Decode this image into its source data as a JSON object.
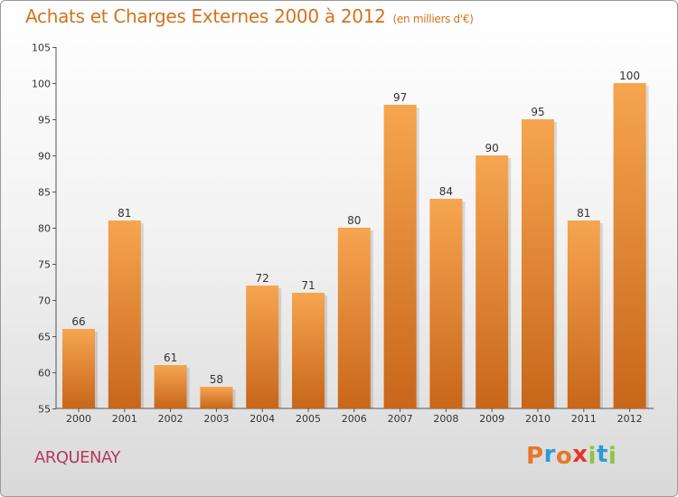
{
  "chart_data": {
    "type": "bar",
    "title": "Achats et Charges Externes 2000 à 2012",
    "subtitle": "(en milliers d'€)",
    "categories": [
      "2000",
      "2001",
      "2002",
      "2003",
      "2004",
      "2005",
      "2006",
      "2007",
      "2008",
      "2009",
      "2010",
      "2011",
      "2012"
    ],
    "values": [
      66,
      81,
      61,
      58,
      72,
      71,
      80,
      97,
      84,
      90,
      95,
      81,
      100
    ],
    "data_labels": [
      "66",
      "81",
      "61",
      "58",
      "72",
      "71",
      "80",
      "97",
      "84",
      "90",
      "95",
      "81",
      "100"
    ],
    "ylim": [
      55,
      105
    ],
    "yticks": [
      55,
      60,
      65,
      70,
      75,
      80,
      85,
      90,
      95,
      100,
      105
    ],
    "xlabel": "",
    "ylabel": "",
    "grid": false,
    "bar_color_top": "#f6a550",
    "bar_color_bottom": "#c8661a"
  },
  "footer": {
    "commune": "ARQUENAY",
    "logo_letters": [
      "P",
      "r",
      "o",
      "x",
      "i",
      "t",
      "i"
    ],
    "logo_colors": [
      "#e8772a",
      "#2a9bd6",
      "#e8772a",
      "#e4342b",
      "#8ac640",
      "#2a9bd6",
      "#8ac640"
    ]
  },
  "colors": {
    "title": "#d4721f",
    "commune": "#b5395f",
    "axis": "#555555"
  }
}
